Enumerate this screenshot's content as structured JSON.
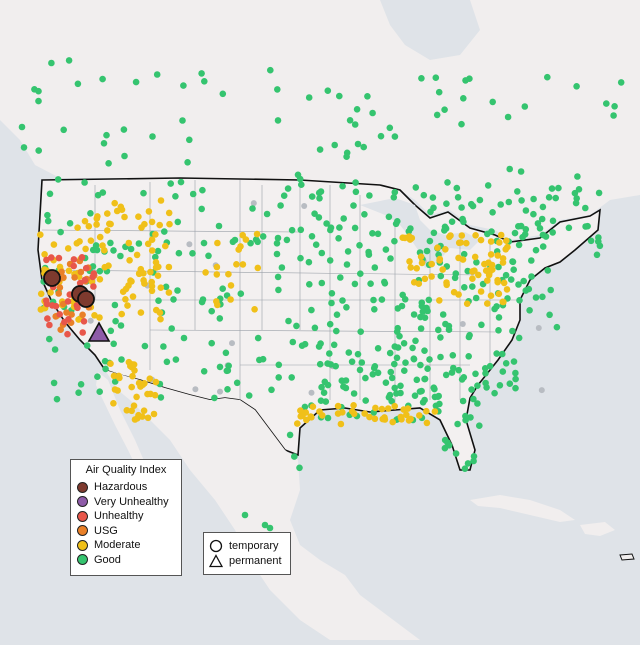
{
  "legend": {
    "title": "Air Quality Index",
    "categories": [
      {
        "label": "Hazardous",
        "color": "#7e3a2e"
      },
      {
        "label": "Very Unhealthy",
        "color": "#8e5ba8"
      },
      {
        "label": "Unhealthy",
        "color": "#e8564a"
      },
      {
        "label": "USG",
        "color": "#e98028"
      },
      {
        "label": "Moderate",
        "color": "#f0c019"
      },
      {
        "label": "Good",
        "color": "#35c46f"
      }
    ],
    "monitor_types": [
      {
        "label": "temporary",
        "shape": "circle-icon"
      },
      {
        "label": "permanent",
        "shape": "triangle-icon"
      }
    ]
  },
  "colors": {
    "water": "#dfe3e8",
    "land": "#f1eeee",
    "us_land": "#f3f0f0",
    "no_data": "#b8bcc2"
  }
}
